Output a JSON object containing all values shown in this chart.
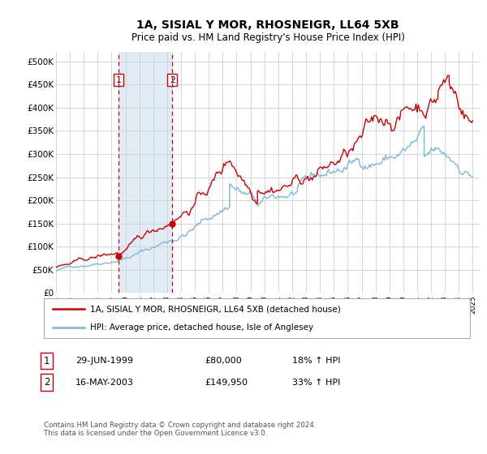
{
  "title": "1A, SISIAL Y MOR, RHOSNEIGR, LL64 5XB",
  "subtitle": "Price paid vs. HM Land Registry's House Price Index (HPI)",
  "legend_line1": "1A, SISIAL Y MOR, RHOSNEIGR, LL64 5XB (detached house)",
  "legend_line2": "HPI: Average price, detached house, Isle of Anglesey",
  "footnote": "Contains HM Land Registry data © Crown copyright and database right 2024.\nThis data is licensed under the Open Government Licence v3.0.",
  "sale1_label": "1",
  "sale1_date": "29-JUN-1999",
  "sale1_price": "£80,000",
  "sale1_hpi": "18% ↑ HPI",
  "sale2_label": "2",
  "sale2_date": "16-MAY-2003",
  "sale2_price": "£149,950",
  "sale2_hpi": "33% ↑ HPI",
  "hpi_color": "#7ab8d9",
  "price_color": "#cc0000",
  "sale1_x": 1999.49,
  "sale2_x": 2003.37,
  "sale1_y": 80000,
  "sale2_y": 149950,
  "ylim": [
    0,
    520000
  ],
  "xlim": [
    1995.0,
    2025.5
  ],
  "yticks": [
    0,
    50000,
    100000,
    150000,
    200000,
    250000,
    300000,
    350000,
    400000,
    450000,
    500000
  ],
  "ytick_labels": [
    "£0",
    "£50K",
    "£100K",
    "£150K",
    "£200K",
    "£250K",
    "£300K",
    "£350K",
    "£400K",
    "£450K",
    "£500K"
  ],
  "xticks": [
    1995,
    1996,
    1997,
    1998,
    1999,
    2000,
    2001,
    2002,
    2003,
    2004,
    2005,
    2006,
    2007,
    2008,
    2009,
    2010,
    2011,
    2012,
    2013,
    2014,
    2015,
    2016,
    2017,
    2018,
    2019,
    2020,
    2021,
    2022,
    2023,
    2024,
    2025
  ],
  "background_color": "#ffffff",
  "plot_bg_color": "#ffffff",
  "grid_color": "#d0d0d0",
  "shade_color": "#dce8f5"
}
